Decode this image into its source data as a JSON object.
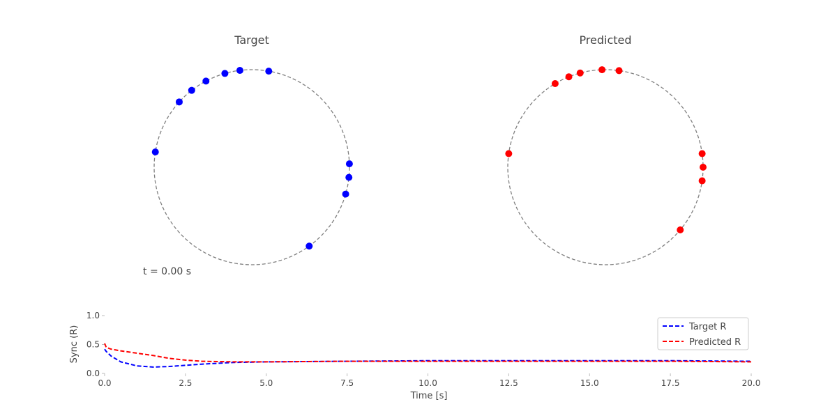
{
  "colors": {
    "target": "#0000ff",
    "predicted": "#ff0000",
    "circle": "#808080",
    "text": "#444444"
  },
  "time_label": "t = 0.00 s",
  "chart_data": [
    {
      "type": "scatter",
      "title": "Target",
      "color": "#0000ff",
      "unit_circle": "dashed",
      "phases_deg": [
        106,
        97,
        80,
        118,
        128,
        138,
        171,
        2,
        -6,
        -16,
        -54
      ]
    },
    {
      "type": "scatter",
      "title": "Predicted",
      "color": "#ff0000",
      "unit_circle": "dashed",
      "phases_deg": [
        105,
        92,
        82,
        112,
        121,
        172,
        8,
        0,
        -8,
        -40
      ]
    },
    {
      "type": "line",
      "xlabel": "Time [s]",
      "ylabel": "Sync (R)",
      "xlim": [
        0,
        20
      ],
      "ylim": [
        0,
        1
      ],
      "xticks": [
        "0.0",
        "2.5",
        "5.0",
        "7.5",
        "10.0",
        "12.5",
        "15.0",
        "17.5",
        "20.0"
      ],
      "yticks": [
        "0.0",
        "0.5",
        "1.0"
      ],
      "legend_position": "top-right",
      "series": [
        {
          "name": "Target R",
          "color": "#0000ff",
          "style": "dashed",
          "x": [
            0,
            0.05,
            0.2,
            0.5,
            1,
            1.5,
            2,
            3,
            4,
            5,
            7.5,
            10,
            12.5,
            15,
            17.5,
            20
          ],
          "y": [
            0.42,
            0.38,
            0.3,
            0.2,
            0.13,
            0.11,
            0.12,
            0.16,
            0.19,
            0.2,
            0.21,
            0.22,
            0.22,
            0.22,
            0.22,
            0.21
          ]
        },
        {
          "name": "Predicted R",
          "color": "#ff0000",
          "style": "dashed",
          "x": [
            0,
            0.05,
            0.2,
            0.5,
            1,
            1.5,
            2,
            2.5,
            3,
            4,
            5,
            7.5,
            10,
            12.5,
            15,
            17.5,
            20
          ],
          "y": [
            0.52,
            0.45,
            0.42,
            0.39,
            0.35,
            0.31,
            0.26,
            0.23,
            0.21,
            0.2,
            0.2,
            0.21,
            0.21,
            0.21,
            0.21,
            0.21,
            0.2
          ]
        }
      ]
    }
  ]
}
